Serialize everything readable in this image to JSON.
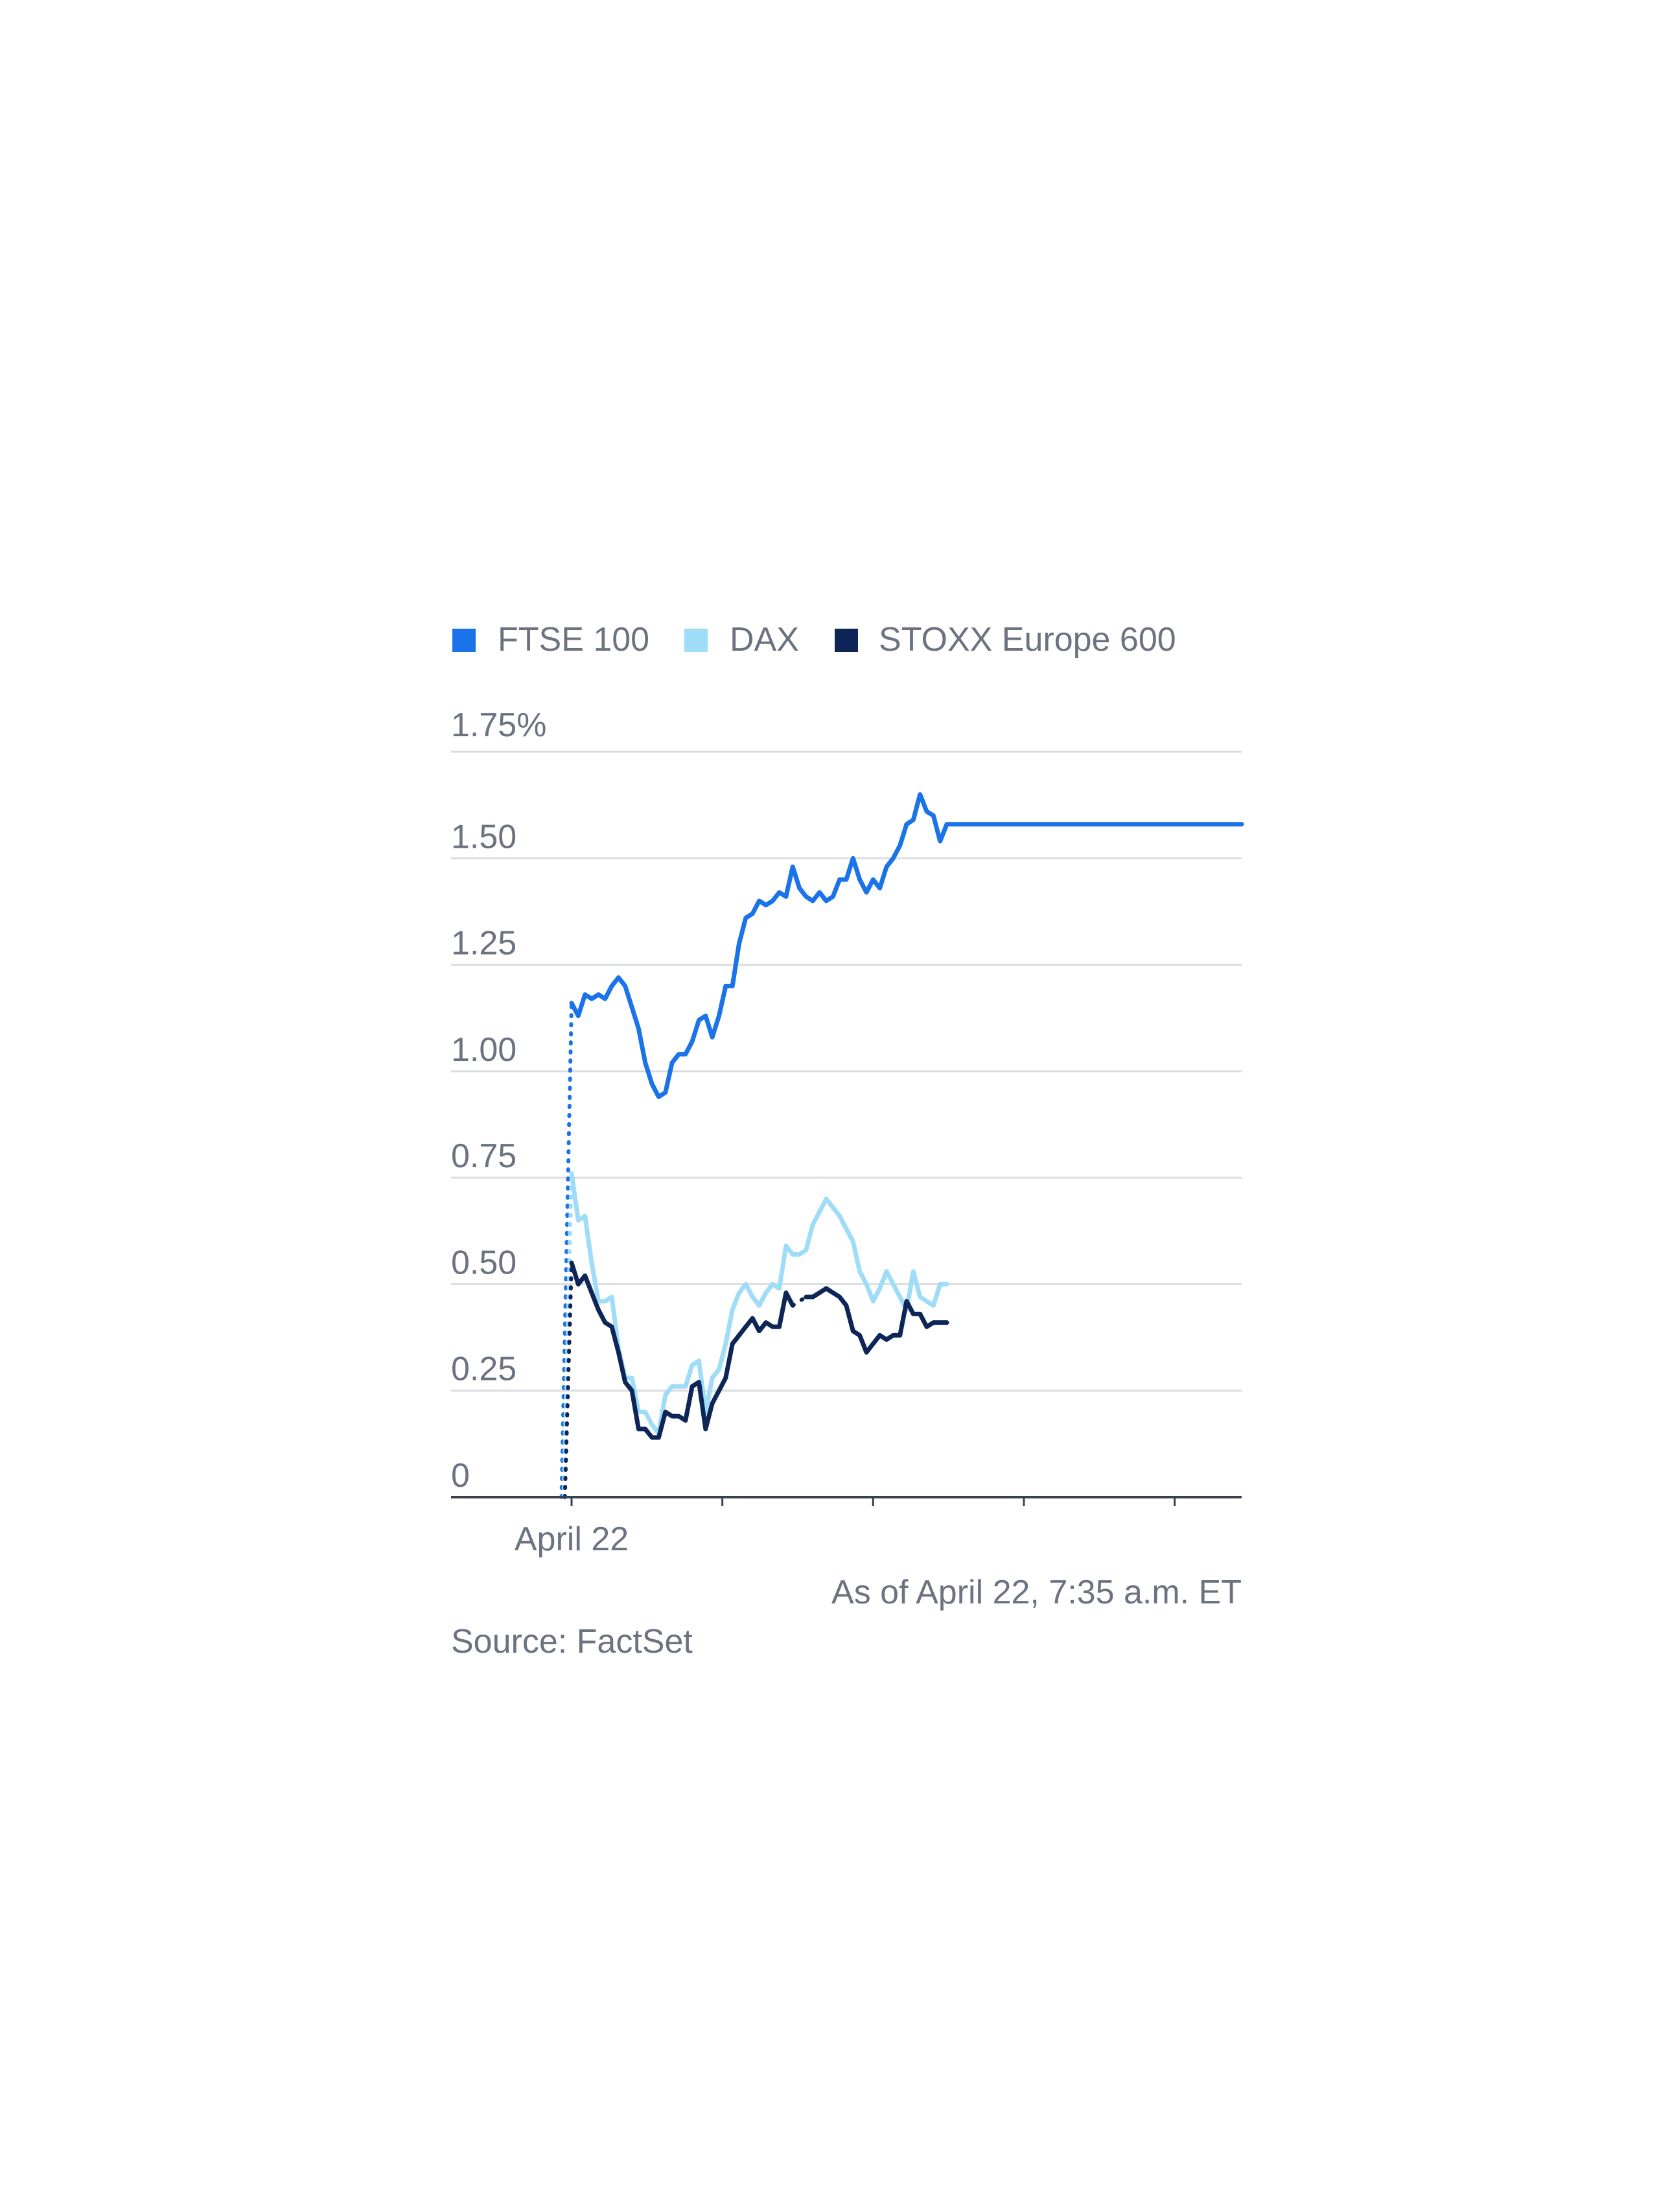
{
  "chart_data": {
    "type": "line",
    "yaxis_unit_label": "1.75%",
    "ylim": [
      0,
      1.75
    ],
    "yticks": [
      {
        "value": 0,
        "label": "0"
      },
      {
        "value": 0.25,
        "label": "0.25"
      },
      {
        "value": 0.5,
        "label": "0.50"
      },
      {
        "value": 0.75,
        "label": "0.75"
      },
      {
        "value": 1.0,
        "label": "1.00"
      },
      {
        "value": 1.25,
        "label": "1.25"
      },
      {
        "value": 1.5,
        "label": "1.50"
      }
    ],
    "grid": true,
    "legend_position": "top-left",
    "x_tick_label": "April 22",
    "xlim": [
      0,
      100
    ],
    "series": [
      {
        "name": "FTSE 100",
        "color": "#1a73e8",
        "prior_close": [
          -1.5,
          0
        ],
        "x": [
          0,
          1,
          2,
          3,
          4,
          5,
          6,
          7,
          8,
          9,
          10,
          11,
          12,
          13,
          14,
          15,
          16,
          17,
          18,
          19,
          20,
          21,
          22,
          23,
          24,
          25,
          26,
          27,
          28,
          29,
          30,
          31,
          32,
          33,
          34,
          35,
          36,
          37,
          38,
          39,
          40,
          41,
          42,
          43,
          44,
          45,
          46,
          47,
          48,
          49,
          50,
          51,
          52,
          53,
          54,
          55,
          56,
          57,
          58,
          59,
          60,
          61,
          62,
          63,
          64,
          65,
          66,
          67,
          68,
          69,
          70,
          71,
          72,
          73,
          74,
          75,
          76,
          77,
          78,
          79,
          80,
          81,
          82,
          83,
          84,
          85,
          86,
          87,
          88,
          89,
          90,
          91,
          92,
          93,
          94,
          95,
          96,
          97,
          98,
          99,
          100
        ],
        "y": [
          1.16,
          1.13,
          1.18,
          1.17,
          1.18,
          1.17,
          1.2,
          1.22,
          1.2,
          1.15,
          1.1,
          1.02,
          0.97,
          0.94,
          0.95,
          1.02,
          1.04,
          1.04,
          1.07,
          1.12,
          1.13,
          1.08,
          1.13,
          1.2,
          1.2,
          1.3,
          1.36,
          1.37,
          1.4,
          1.39,
          1.4,
          1.42,
          1.41,
          1.48,
          1.43,
          1.41,
          1.4,
          1.42,
          1.4,
          1.41,
          1.45,
          1.45,
          1.5,
          1.45,
          1.42,
          1.45,
          1.43,
          1.48,
          1.5,
          1.53,
          1.58,
          1.59,
          1.65,
          1.61,
          1.6,
          1.54,
          1.58,
          1.58,
          1.58,
          1.58,
          1.58,
          1.58,
          1.58,
          1.58,
          1.58,
          1.58,
          1.58,
          1.58,
          1.58,
          1.58,
          1.58,
          1.58,
          1.58,
          1.58,
          1.58,
          1.58,
          1.58,
          1.58,
          1.58,
          1.58,
          1.58,
          1.58,
          1.58,
          1.58,
          1.58,
          1.58,
          1.58,
          1.58,
          1.58,
          1.58,
          1.58,
          1.58,
          1.58,
          1.58,
          1.58,
          1.58,
          1.58,
          1.58,
          1.58,
          1.58,
          1.58
        ]
      },
      {
        "name": "DAX",
        "color": "#9fdcf7",
        "prior_close": [
          -1.2,
          0
        ],
        "x": [
          0,
          1,
          2,
          3,
          4,
          5,
          6,
          7,
          8,
          9,
          10,
          11,
          12,
          13,
          14,
          15,
          16,
          17,
          18,
          19,
          20,
          21,
          22,
          23,
          24,
          25,
          26,
          27,
          28,
          29,
          30,
          31,
          32,
          33,
          34,
          35,
          36,
          37,
          38,
          39,
          40,
          41,
          42,
          43,
          44,
          45,
          46,
          47,
          48,
          49,
          50,
          51,
          52,
          53,
          54,
          55,
          56
        ],
        "y": [
          0.76,
          0.65,
          0.66,
          0.55,
          0.46,
          0.46,
          0.47,
          0.35,
          0.28,
          0.28,
          0.2,
          0.2,
          0.17,
          0.15,
          0.24,
          0.26,
          0.26,
          0.26,
          0.31,
          0.32,
          0.2,
          0.28,
          0.3,
          0.36,
          0.44,
          0.48,
          0.5,
          0.47,
          0.45,
          0.48,
          0.5,
          0.49,
          0.59,
          0.57,
          0.57,
          0.58,
          0.64,
          0.67,
          0.7,
          0.68,
          0.66,
          0.63,
          0.6,
          0.53,
          0.5,
          0.46,
          0.49,
          0.53,
          0.5,
          0.47,
          0.44,
          0.53,
          0.47,
          0.46,
          0.45,
          0.5,
          0.5
        ]
      },
      {
        "name": "STOXX Europe 600",
        "color": "#0d2657",
        "prior_close": [
          -1.0,
          0
        ],
        "x": [
          0,
          1,
          2,
          3,
          4,
          5,
          6,
          7,
          8,
          9,
          10,
          11,
          12,
          13,
          14,
          15,
          16,
          17,
          18,
          19,
          20,
          21,
          22,
          23,
          24,
          25,
          26,
          27,
          28,
          29,
          30,
          31,
          32,
          33,
          34,
          35,
          36,
          37,
          38,
          39,
          40,
          41,
          42,
          43,
          44,
          45,
          46,
          47,
          48,
          49,
          50,
          51,
          52,
          53,
          54,
          55,
          56
        ],
        "y": [
          0.55,
          0.5,
          0.52,
          0.48,
          0.44,
          0.41,
          0.4,
          0.34,
          0.27,
          0.25,
          0.16,
          0.16,
          0.14,
          0.14,
          0.2,
          0.19,
          0.19,
          0.18,
          0.26,
          0.27,
          0.16,
          0.22,
          0.25,
          0.28,
          0.36,
          0.38,
          0.4,
          0.42,
          0.39,
          0.41,
          0.4,
          0.4,
          0.48,
          0.45,
          null,
          0.47,
          0.47,
          0.48,
          0.49,
          0.48,
          0.47,
          0.45,
          0.39,
          0.38,
          0.34,
          0.36,
          0.38,
          0.37,
          0.38,
          0.38,
          0.46,
          0.43,
          0.43,
          0.4,
          0.41,
          0.41,
          0.41
        ]
      }
    ]
  },
  "legend": {
    "items": [
      {
        "label": "FTSE 100",
        "color": "#1a73e8"
      },
      {
        "label": "DAX",
        "color": "#9fdcf7"
      },
      {
        "label": "STOXX Europe 600",
        "color": "#0d2657"
      }
    ]
  },
  "notes": {
    "as_of": "As of April 22, 7:35 a.m. ET",
    "source": "Source: FactSet"
  }
}
